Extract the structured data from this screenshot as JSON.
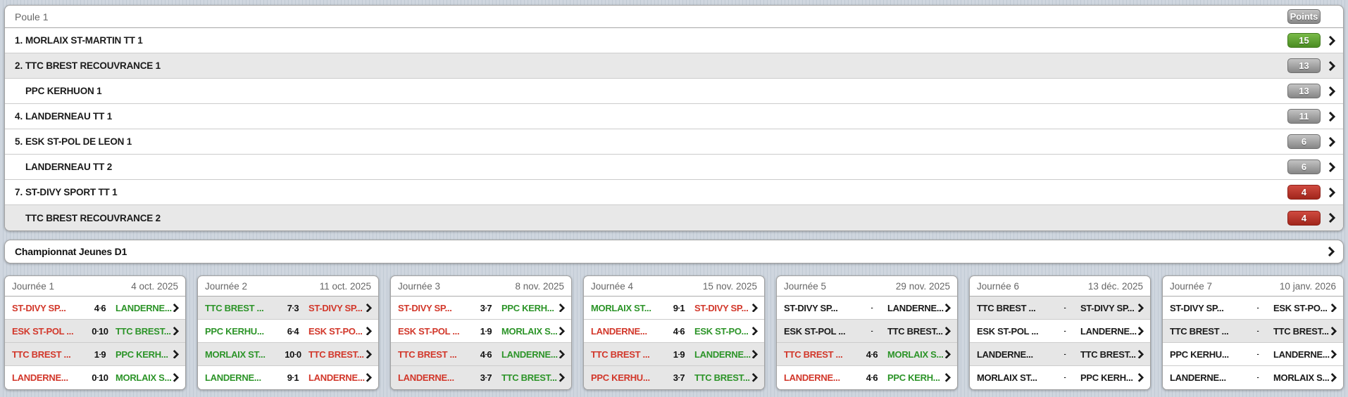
{
  "standings": {
    "title": "Poule 1",
    "points_label": "Points",
    "rows": [
      {
        "rank": "1.",
        "team": "MORLAIX ST-MARTIN TT 1",
        "points": "15",
        "badge": "green",
        "highlight": false
      },
      {
        "rank": "2.",
        "team": "TTC BREST RECOUVRANCE 1",
        "points": "13",
        "badge": "gray",
        "highlight": true
      },
      {
        "rank": "",
        "team": "PPC KERHUON 1",
        "points": "13",
        "badge": "gray",
        "highlight": false
      },
      {
        "rank": "4.",
        "team": "LANDERNEAU TT 1",
        "points": "11",
        "badge": "gray",
        "highlight": false
      },
      {
        "rank": "5.",
        "team": "ESK ST-POL DE LEON 1",
        "points": "6",
        "badge": "gray",
        "highlight": false
      },
      {
        "rank": "",
        "team": "LANDERNEAU TT 2",
        "points": "6",
        "badge": "gray",
        "highlight": false
      },
      {
        "rank": "7.",
        "team": "ST-DIVY SPORT TT 1",
        "points": "4",
        "badge": "red",
        "highlight": false
      },
      {
        "rank": "",
        "team": "TTC BREST RECOUVRANCE 2",
        "points": "4",
        "badge": "red",
        "highlight": true
      }
    ]
  },
  "championnat": {
    "label": "Championnat Jeunes D1"
  },
  "journees": [
    {
      "title": "Journée 1",
      "date": "4 oct. 2025",
      "matches": [
        {
          "home": "ST-DIVY SP...",
          "score": "4-6",
          "away": "LANDERNE...",
          "result": [
            "loss",
            "win"
          ],
          "highlight": false
        },
        {
          "home": "ESK ST-POL ...",
          "score": "0-10",
          "away": "TTC BREST...",
          "result": [
            "loss",
            "win"
          ],
          "highlight": true
        },
        {
          "home": "TTC BREST ...",
          "score": "1-9",
          "away": "PPC KERH...",
          "result": [
            "loss",
            "win"
          ],
          "highlight": true
        },
        {
          "home": "LANDERNE...",
          "score": "0-10",
          "away": "MORLAIX S...",
          "result": [
            "loss",
            "win"
          ],
          "highlight": false
        }
      ]
    },
    {
      "title": "Journée 2",
      "date": "11 oct. 2025",
      "matches": [
        {
          "home": "TTC BREST ...",
          "score": "7-3",
          "away": "ST-DIVY SP...",
          "result": [
            "win",
            "loss"
          ],
          "highlight": true
        },
        {
          "home": "PPC KERHU...",
          "score": "6-4",
          "away": "ESK ST-PO...",
          "result": [
            "win",
            "loss"
          ],
          "highlight": false
        },
        {
          "home": "MORLAIX ST...",
          "score": "10-0",
          "away": "TTC BREST...",
          "result": [
            "win",
            "loss"
          ],
          "highlight": true
        },
        {
          "home": "LANDERNE...",
          "score": "9-1",
          "away": "LANDERNE...",
          "result": [
            "win",
            "loss"
          ],
          "highlight": false
        }
      ]
    },
    {
      "title": "Journée 3",
      "date": "8 nov. 2025",
      "matches": [
        {
          "home": "ST-DIVY SP...",
          "score": "3-7",
          "away": "PPC KERH...",
          "result": [
            "loss",
            "win"
          ],
          "highlight": false
        },
        {
          "home": "ESK ST-POL ...",
          "score": "1-9",
          "away": "MORLAIX S...",
          "result": [
            "loss",
            "win"
          ],
          "highlight": false
        },
        {
          "home": "TTC BREST ...",
          "score": "4-6",
          "away": "LANDERNE...",
          "result": [
            "loss",
            "win"
          ],
          "highlight": true
        },
        {
          "home": "LANDERNE...",
          "score": "3-7",
          "away": "TTC BREST...",
          "result": [
            "loss",
            "win"
          ],
          "highlight": true
        }
      ]
    },
    {
      "title": "Journée 4",
      "date": "15 nov. 2025",
      "matches": [
        {
          "home": "MORLAIX ST...",
          "score": "9-1",
          "away": "ST-DIVY SP...",
          "result": [
            "win",
            "loss"
          ],
          "highlight": false
        },
        {
          "home": "LANDERNE...",
          "score": "4-6",
          "away": "ESK ST-PO...",
          "result": [
            "loss",
            "win"
          ],
          "highlight": false
        },
        {
          "home": "TTC BREST ...",
          "score": "1-9",
          "away": "LANDERNE...",
          "result": [
            "loss",
            "win"
          ],
          "highlight": true
        },
        {
          "home": "PPC KERHU...",
          "score": "3-7",
          "away": "TTC BREST...",
          "result": [
            "loss",
            "win"
          ],
          "highlight": true
        }
      ]
    },
    {
      "title": "Journée 5",
      "date": "29 nov. 2025",
      "matches": [
        {
          "home": "ST-DIVY SP...",
          "score": "-",
          "away": "LANDERNE...",
          "result": null,
          "highlight": false
        },
        {
          "home": "ESK ST-POL ...",
          "score": "-",
          "away": "TTC BREST...",
          "result": null,
          "highlight": true
        },
        {
          "home": "TTC BREST ...",
          "score": "4-6",
          "away": "MORLAIX S...",
          "result": [
            "loss",
            "win"
          ],
          "highlight": true
        },
        {
          "home": "LANDERNE...",
          "score": "4-6",
          "away": "PPC KERH...",
          "result": [
            "loss",
            "win"
          ],
          "highlight": false
        }
      ]
    },
    {
      "title": "Journée 6",
      "date": "13 déc. 2025",
      "matches": [
        {
          "home": "TTC BREST ...",
          "score": "-",
          "away": "ST-DIVY SP...",
          "result": null,
          "highlight": true
        },
        {
          "home": "ESK ST-POL ...",
          "score": "-",
          "away": "LANDERNE...",
          "result": null,
          "highlight": false
        },
        {
          "home": "LANDERNE...",
          "score": "-",
          "away": "TTC BREST...",
          "result": null,
          "highlight": true
        },
        {
          "home": "MORLAIX ST...",
          "score": "-",
          "away": "PPC KERH...",
          "result": null,
          "highlight": false
        }
      ]
    },
    {
      "title": "Journée 7",
      "date": "10 janv. 2026",
      "matches": [
        {
          "home": "ST-DIVY SP...",
          "score": "-",
          "away": "ESK ST-PO...",
          "result": null,
          "highlight": false
        },
        {
          "home": "TTC BREST ...",
          "score": "-",
          "away": "TTC BREST...",
          "result": null,
          "highlight": true
        },
        {
          "home": "PPC KERHU...",
          "score": "-",
          "away": "LANDERNE...",
          "result": null,
          "highlight": false
        },
        {
          "home": "LANDERNE...",
          "score": "-",
          "away": "MORLAIX S...",
          "result": null,
          "highlight": false
        }
      ]
    }
  ],
  "colors": {
    "win_text": "#2c9428",
    "loss_text": "#d2372a",
    "badge_green": "#5a9e30",
    "badge_gray": "#9a9a9a",
    "badge_red": "#b32f24",
    "highlight_row": "#e7e7e7"
  }
}
